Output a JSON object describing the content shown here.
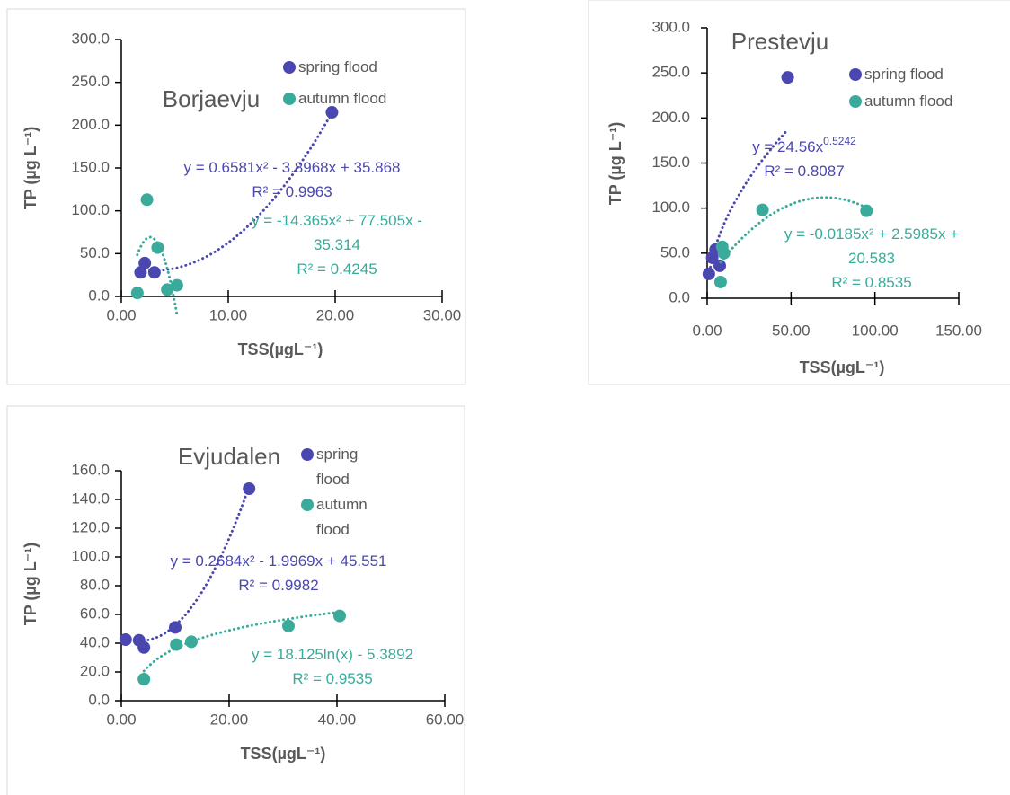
{
  "chart_data": [
    {
      "type": "scatter",
      "title": "Borjaevju",
      "x_label": "TSS(µgL⁻¹)",
      "y_label": "TP (µg L⁻¹)",
      "xlim": [
        0,
        30
      ],
      "xticks": [
        {
          "value": 0,
          "label": "0.00"
        },
        {
          "value": 10,
          "label": "10.00"
        },
        {
          "value": 20,
          "label": "20.00"
        },
        {
          "value": 30,
          "label": "30.00"
        }
      ],
      "ylim": [
        0,
        300
      ],
      "yticks": [
        {
          "value": 0,
          "label": "0.0"
        },
        {
          "value": 50,
          "label": "50.0"
        },
        {
          "value": 100,
          "label": "100.0"
        },
        {
          "value": 150,
          "label": "150.0"
        },
        {
          "value": 200,
          "label": "200.0"
        },
        {
          "value": 250,
          "label": "250.0"
        },
        {
          "value": 300,
          "label": "300.0"
        }
      ],
      "series": [
        {
          "name": "spring flood",
          "color": "#4a47b0",
          "x": [
            19.7,
            2.2,
            1.8,
            3.1
          ],
          "values": [
            215,
            39,
            28,
            28
          ],
          "trendline": {
            "kind": "poly2",
            "coefficients": [
              0.6581,
              -3.8968,
              35.868
            ],
            "label_lines": [
              [
                "y = 0.6581x² - 3.8968x + 35.868"
              ],
              [
                "R² = 0.9963"
              ]
            ]
          }
        },
        {
          "name": "autumn flood",
          "color": "#3aab9b",
          "x": [
            2.4,
            1.5,
            3.4,
            4.3,
            5.2
          ],
          "values": [
            113,
            4,
            57,
            8,
            13
          ],
          "trendline": {
            "kind": "poly2",
            "coefficients": [
              -14.365,
              77.505,
              -35.314
            ],
            "label_lines": [
              [
                "y = -14.365x² + 77.505x -"
              ],
              [
                "35.314"
              ],
              [
                "R² = 0.4245"
              ]
            ]
          }
        }
      ]
    },
    {
      "type": "scatter",
      "title": "Prestevju",
      "x_label": "TSS(µgL⁻¹)",
      "y_label": "TP (µg L⁻¹)",
      "xlim": [
        0,
        150
      ],
      "xticks": [
        {
          "value": 0,
          "label": "0.00"
        },
        {
          "value": 50,
          "label": "50.00"
        },
        {
          "value": 100,
          "label": "100.00"
        },
        {
          "value": 150,
          "label": "150.00"
        }
      ],
      "ylim": [
        0,
        300
      ],
      "yticks": [
        {
          "value": 0,
          "label": "0.0"
        },
        {
          "value": 50,
          "label": "50.0"
        },
        {
          "value": 100,
          "label": "100.0"
        },
        {
          "value": 150,
          "label": "150.0"
        },
        {
          "value": 200,
          "label": "200.0"
        },
        {
          "value": 250,
          "label": "250.0"
        },
        {
          "value": 300,
          "label": "300.0"
        }
      ],
      "series": [
        {
          "name": "spring flood",
          "color": "#4a47b0",
          "x": [
            48,
            1,
            3,
            5,
            7.5
          ],
          "values": [
            245,
            27,
            45,
            54,
            36
          ],
          "trendline": {
            "kind": "power",
            "coefficients": [
              24.56,
              0.5242
            ],
            "label_lines": [
              [
                "y = 24.56x",
                "0.5242"
              ],
              [
                "R² = 0.8087"
              ]
            ]
          }
        },
        {
          "name": "autumn flood",
          "color": "#3aab9b",
          "x": [
            33,
            95,
            9,
            10,
            8
          ],
          "values": [
            98,
            97,
            57,
            50,
            18
          ],
          "trendline": {
            "kind": "poly2",
            "coefficients": [
              -0.0185,
              2.5985,
              20.583
            ],
            "label_lines": [
              [
                "y = -0.0185x² + 2.5985x +"
              ],
              [
                "20.583"
              ],
              [
                "R² = 0.8535"
              ]
            ]
          }
        }
      ]
    },
    {
      "type": "scatter",
      "title": "Evjudalen",
      "x_label": "TSS(µgL⁻¹)",
      "y_label": "TP (µg L⁻¹)",
      "xlim": [
        0,
        60
      ],
      "xticks": [
        {
          "value": 0,
          "label": "0.00"
        },
        {
          "value": 20,
          "label": "20.00"
        },
        {
          "value": 40,
          "label": "40.00"
        },
        {
          "value": 60,
          "label": "60.00"
        }
      ],
      "ylim": [
        0,
        160
      ],
      "yticks": [
        {
          "value": 0,
          "label": "0.0"
        },
        {
          "value": 20,
          "label": "20.0"
        },
        {
          "value": 40,
          "label": "40.0"
        },
        {
          "value": 60,
          "label": "60.0"
        },
        {
          "value": 80,
          "label": "80.0"
        },
        {
          "value": 100,
          "label": "100.0"
        },
        {
          "value": 120,
          "label": "120.0"
        },
        {
          "value": 140,
          "label": "140.0"
        },
        {
          "value": 160,
          "label": "160.0"
        }
      ],
      "series": [
        {
          "name": "spring flood",
          "color": "#4a47b0",
          "x": [
            0.8,
            3.3,
            4.2,
            10,
            23.7
          ],
          "values": [
            42.5,
            42,
            37,
            51,
            147.5
          ],
          "trendline": {
            "kind": "poly2",
            "coefficients": [
              0.2684,
              -1.9969,
              45.551
            ],
            "label_lines": [
              [
                "y = 0.2684x² - 1.9969x + 45.551"
              ],
              [
                "R² = 0.9982"
              ]
            ]
          }
        },
        {
          "name": "autumn flood",
          "color": "#3aab9b",
          "x": [
            4.2,
            10.2,
            13,
            31,
            40.5
          ],
          "values": [
            15,
            39,
            41,
            52,
            59
          ],
          "trendline": {
            "kind": "log",
            "coefficients": [
              18.125,
              -5.3892
            ],
            "label_lines": [
              [
                "y = 18.125ln(x) - 5.3892"
              ],
              [
                "R² = 0.9535"
              ]
            ]
          }
        }
      ]
    }
  ]
}
